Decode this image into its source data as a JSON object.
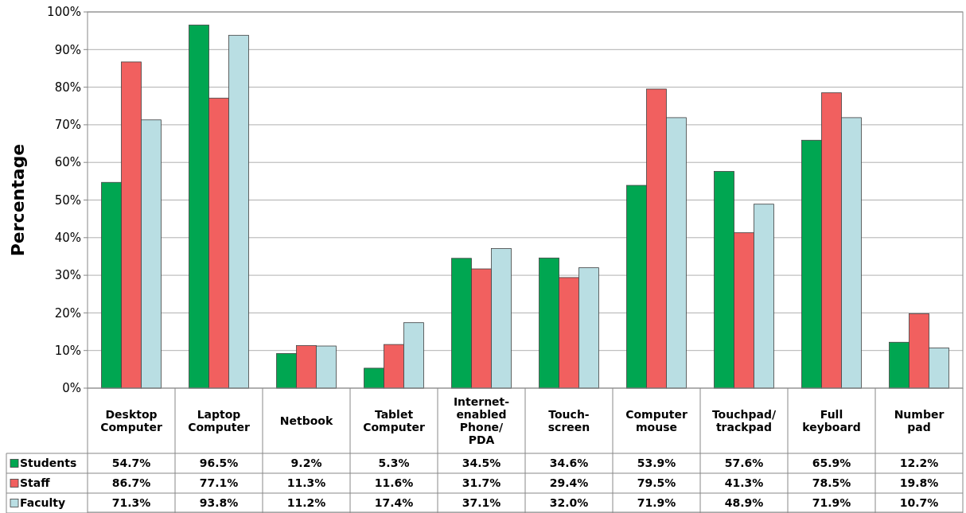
{
  "chart_data": {
    "type": "bar",
    "ylabel": "Percentage",
    "categories": [
      "Desktop\nComputer",
      "Laptop\nComputer",
      "Netbook",
      "Tablet\nComputer",
      "Internet-\nenabled\nPhone/\nPDA",
      "Touch-\nscreen",
      "Computer\nmouse",
      "Touchpad/\ntrackpad",
      "Full\nkeyboard",
      "Number\npad"
    ],
    "series": [
      {
        "name": "Students",
        "color": "#00a651",
        "values": [
          54.7,
          96.5,
          9.2,
          5.3,
          34.5,
          34.6,
          53.9,
          57.6,
          65.9,
          12.2
        ],
        "value_labels": [
          "54.7%",
          "96.5%",
          "9.2%",
          "5.3%",
          "34.5%",
          "34.6%",
          "53.9%",
          "57.6%",
          "65.9%",
          "12.2%"
        ]
      },
      {
        "name": "Staff",
        "color": "#f1605f",
        "values": [
          86.7,
          77.1,
          11.3,
          11.6,
          31.7,
          29.4,
          79.5,
          41.3,
          78.5,
          19.8
        ],
        "value_labels": [
          "86.7%",
          "77.1%",
          "11.3%",
          "11.6%",
          "31.7%",
          "29.4%",
          "79.5%",
          "41.3%",
          "78.5%",
          "19.8%"
        ]
      },
      {
        "name": "Faculty",
        "color": "#b9dee3",
        "values": [
          71.3,
          93.8,
          11.2,
          17.4,
          37.1,
          32.0,
          71.9,
          48.9,
          71.9,
          10.7
        ],
        "value_labels": [
          "71.3%",
          "93.8%",
          "11.2%",
          "17.4%",
          "37.1%",
          "32.0%",
          "71.9%",
          "48.9%",
          "71.9%",
          "10.7%"
        ]
      }
    ],
    "ylim": [
      0,
      100
    ],
    "yticks": [
      {
        "value": 0,
        "label": "0%"
      },
      {
        "value": 10,
        "label": "10%"
      },
      {
        "value": 20,
        "label": "20%"
      },
      {
        "value": 30,
        "label": "30%"
      },
      {
        "value": 40,
        "label": "40%"
      },
      {
        "value": 50,
        "label": "50%"
      },
      {
        "value": 60,
        "label": "60%"
      },
      {
        "value": 70,
        "label": "70%"
      },
      {
        "value": 80,
        "label": "80%"
      },
      {
        "value": 90,
        "label": "90%"
      },
      {
        "value": 100,
        "label": "100%"
      }
    ],
    "grid": "y",
    "legend": "bottom left"
  }
}
